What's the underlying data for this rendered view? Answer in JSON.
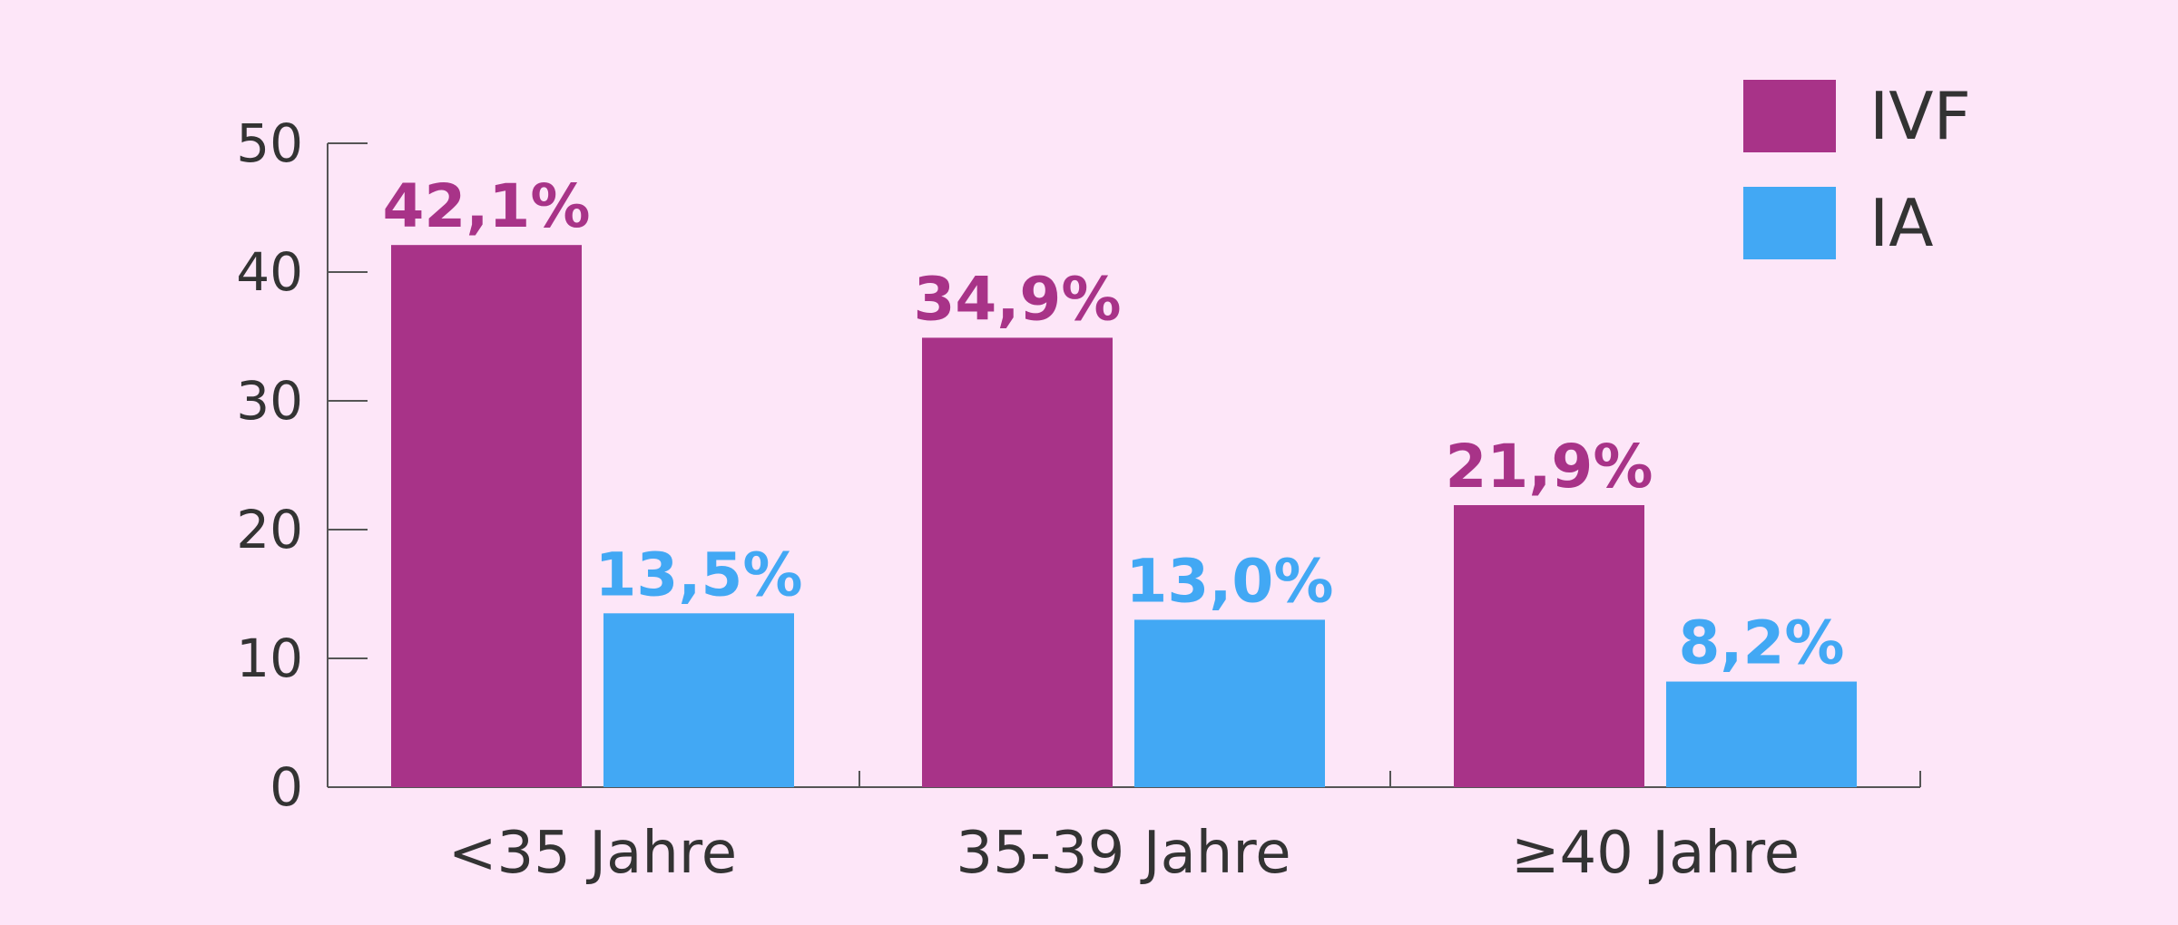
{
  "chart_data": {
    "type": "bar",
    "title": "",
    "xlabel": "",
    "ylabel": "",
    "categories": [
      "<35 Jahre",
      "35-39 Jahre",
      "≥40 Jahre"
    ],
    "series": [
      {
        "name": "IVF",
        "values": [
          42.1,
          34.9,
          21.9
        ],
        "labels": [
          "42,1%",
          "34,9%",
          "21,9%"
        ],
        "color": "#a83388"
      },
      {
        "name": "IA",
        "values": [
          13.5,
          13.0,
          8.2
        ],
        "labels": [
          "13,5%",
          "13,0%",
          "8,2%"
        ],
        "color": "#42a8f4"
      }
    ],
    "ylim": [
      0,
      50
    ],
    "yticks": [
      0,
      10,
      20,
      30,
      40,
      50
    ],
    "grid": false,
    "legend_position": "top-right",
    "background": "#fde6f8"
  }
}
